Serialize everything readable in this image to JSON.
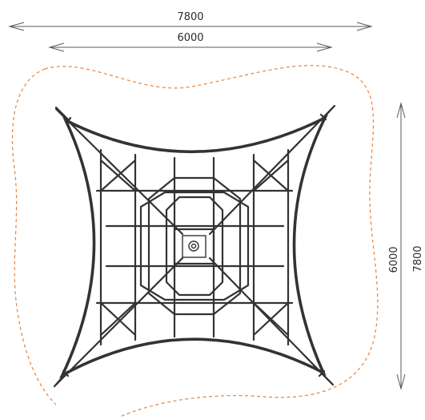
{
  "dimensions": {
    "outer_width": "7800",
    "net_width": "6000",
    "net_height": "6000",
    "outer_height": "7800"
  },
  "colors": {
    "safety_zone": "#e8823a",
    "rope": "#333333",
    "dimension": "#5a5a5a"
  }
}
